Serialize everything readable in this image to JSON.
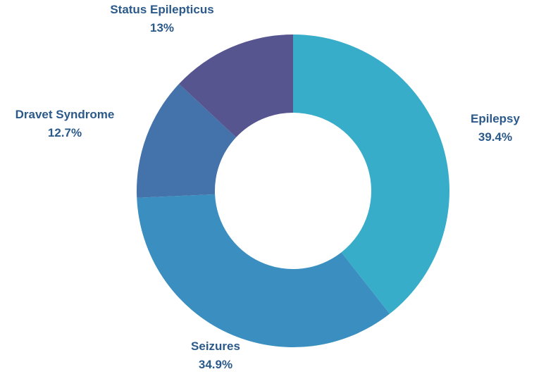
{
  "chart_data": {
    "type": "pie",
    "donut": true,
    "slices": [
      {
        "label": "Epilepsy",
        "value": 39.4,
        "display": "39.4%",
        "color": "#38adc9"
      },
      {
        "label": "Seizures",
        "value": 34.9,
        "display": "34.9%",
        "color": "#3a8fc0"
      },
      {
        "label": "Dravet Syndrome",
        "value": 12.7,
        "display": "12.7%",
        "color": "#4472aa"
      },
      {
        "label": "Status Epilepticus",
        "value": 13,
        "display": "13%",
        "color": "#56558f"
      }
    ],
    "start_angle_deg": 0,
    "direction": "clockwise",
    "label_color": "#2b5a8a"
  }
}
